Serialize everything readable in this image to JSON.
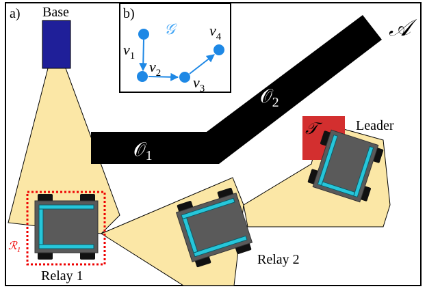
{
  "panel_a": {
    "label": "a)",
    "base": "Base",
    "environment": "𝒜",
    "obstacles": [
      {
        "symbol": "𝒪",
        "subscript": "1"
      },
      {
        "symbol": "𝒪",
        "subscript": "2"
      }
    ],
    "target": "𝒯",
    "leader": "Leader",
    "relay_1": "Relay 1",
    "relay_2": "Relay 2",
    "region": {
      "symbol": "ℛ",
      "subscript": "1"
    }
  },
  "panel_b": {
    "label": "b)",
    "graph": "𝒢",
    "nodes": [
      {
        "symbol": "v",
        "subscript": "1"
      },
      {
        "symbol": "v",
        "subscript": "2"
      },
      {
        "symbol": "v",
        "subscript": "3"
      },
      {
        "symbol": "v",
        "subscript": "4"
      }
    ]
  }
}
